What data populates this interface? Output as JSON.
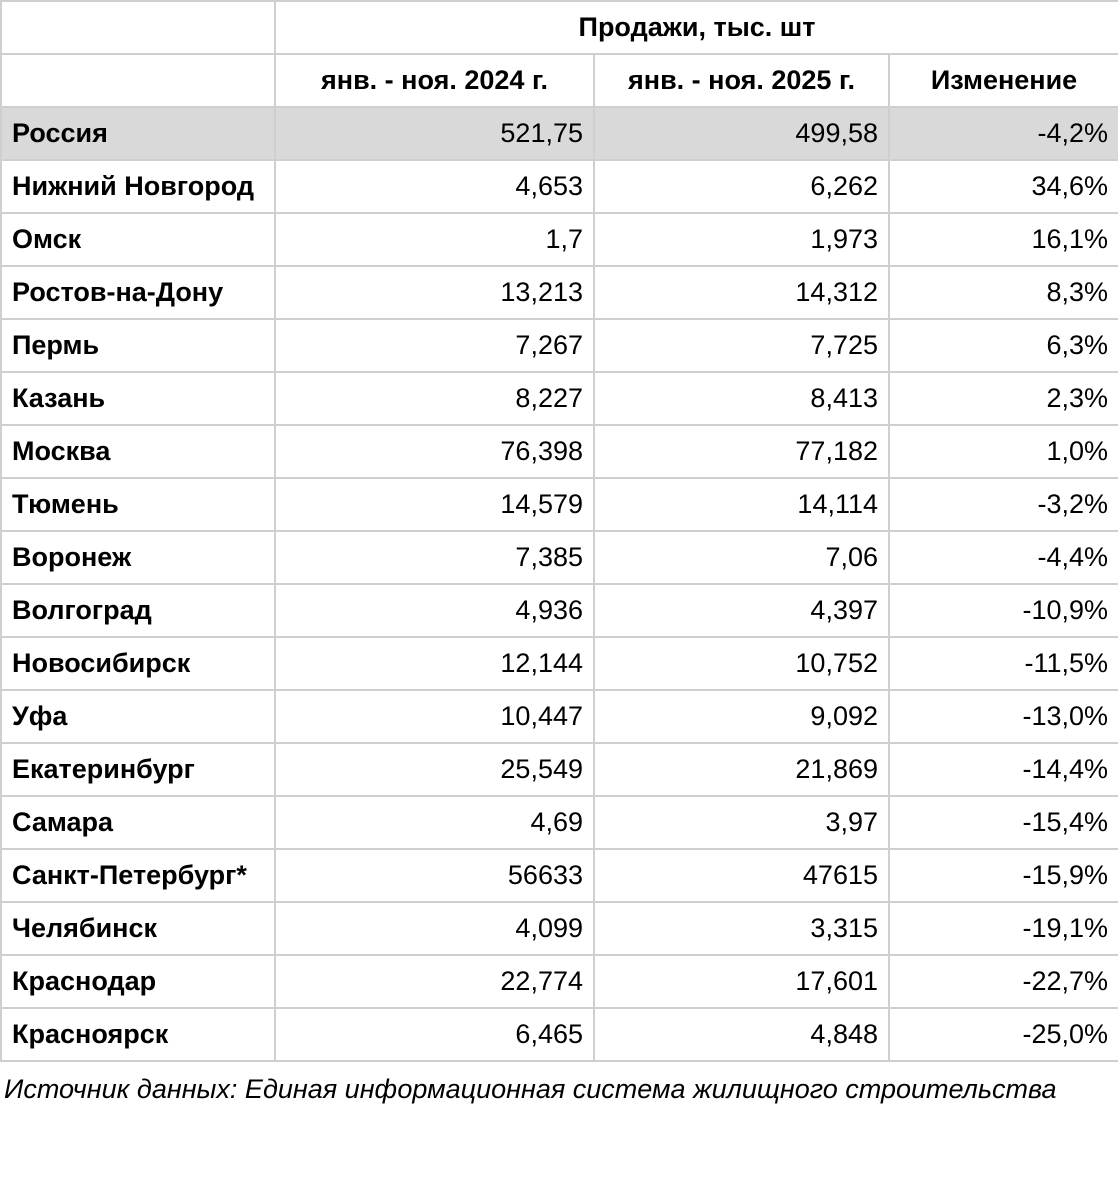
{
  "chart_data": {
    "type": "table",
    "title": "Продажи, тыс. шт",
    "column_headers": [
      "янв. - ноя. 2024 г.",
      "янв. - ноя. 2025 г.",
      "Изменение"
    ],
    "rows": [
      {
        "city": "Россия",
        "y2024": "521,75",
        "y2025": "499,58",
        "change": "-4,2%",
        "highlighted": true
      },
      {
        "city": "Нижний Новгород",
        "y2024": "4,653",
        "y2025": "6,262",
        "change": "34,6%",
        "highlighted": false
      },
      {
        "city": "Омск",
        "y2024": "1,7",
        "y2025": "1,973",
        "change": "16,1%",
        "highlighted": false
      },
      {
        "city": "Ростов-на-Дону",
        "y2024": "13,213",
        "y2025": "14,312",
        "change": "8,3%",
        "highlighted": false
      },
      {
        "city": "Пермь",
        "y2024": "7,267",
        "y2025": "7,725",
        "change": "6,3%",
        "highlighted": false
      },
      {
        "city": "Казань",
        "y2024": "8,227",
        "y2025": "8,413",
        "change": "2,3%",
        "highlighted": false
      },
      {
        "city": "Москва",
        "y2024": "76,398",
        "y2025": "77,182",
        "change": "1,0%",
        "highlighted": false
      },
      {
        "city": "Тюмень",
        "y2024": "14,579",
        "y2025": "14,114",
        "change": "-3,2%",
        "highlighted": false
      },
      {
        "city": "Воронеж",
        "y2024": "7,385",
        "y2025": "7,06",
        "change": "-4,4%",
        "highlighted": false
      },
      {
        "city": "Волгоград",
        "y2024": "4,936",
        "y2025": "4,397",
        "change": "-10,9%",
        "highlighted": false
      },
      {
        "city": "Новосибирск",
        "y2024": "12,144",
        "y2025": "10,752",
        "change": "-11,5%",
        "highlighted": false
      },
      {
        "city": "Уфа",
        "y2024": "10,447",
        "y2025": "9,092",
        "change": "-13,0%",
        "highlighted": false
      },
      {
        "city": "Екатеринбург",
        "y2024": "25,549",
        "y2025": "21,869",
        "change": "-14,4%",
        "highlighted": false
      },
      {
        "city": "Самара",
        "y2024": "4,69",
        "y2025": "3,97",
        "change": "-15,4%",
        "highlighted": false
      },
      {
        "city": "Санкт-Петербург*",
        "y2024": "56633",
        "y2025": "47615",
        "change": "-15,9%",
        "highlighted": false
      },
      {
        "city": "Челябинск",
        "y2024": "4,099",
        "y2025": "3,315",
        "change": "-19,1%",
        "highlighted": false
      },
      {
        "city": "Краснодар",
        "y2024": "22,774",
        "y2025": "17,601",
        "change": "-22,7%",
        "highlighted": false
      },
      {
        "city": "Красноярск",
        "y2024": "6,465",
        "y2025": "4,848",
        "change": "-25,0%",
        "highlighted": false
      }
    ],
    "note": "Источник данных: Единая информационная система жилищного строительства",
    "layout": {
      "highlight_bg": "#d9d9d9",
      "border_color": "#d0cece",
      "text_color": "#000000"
    }
  }
}
